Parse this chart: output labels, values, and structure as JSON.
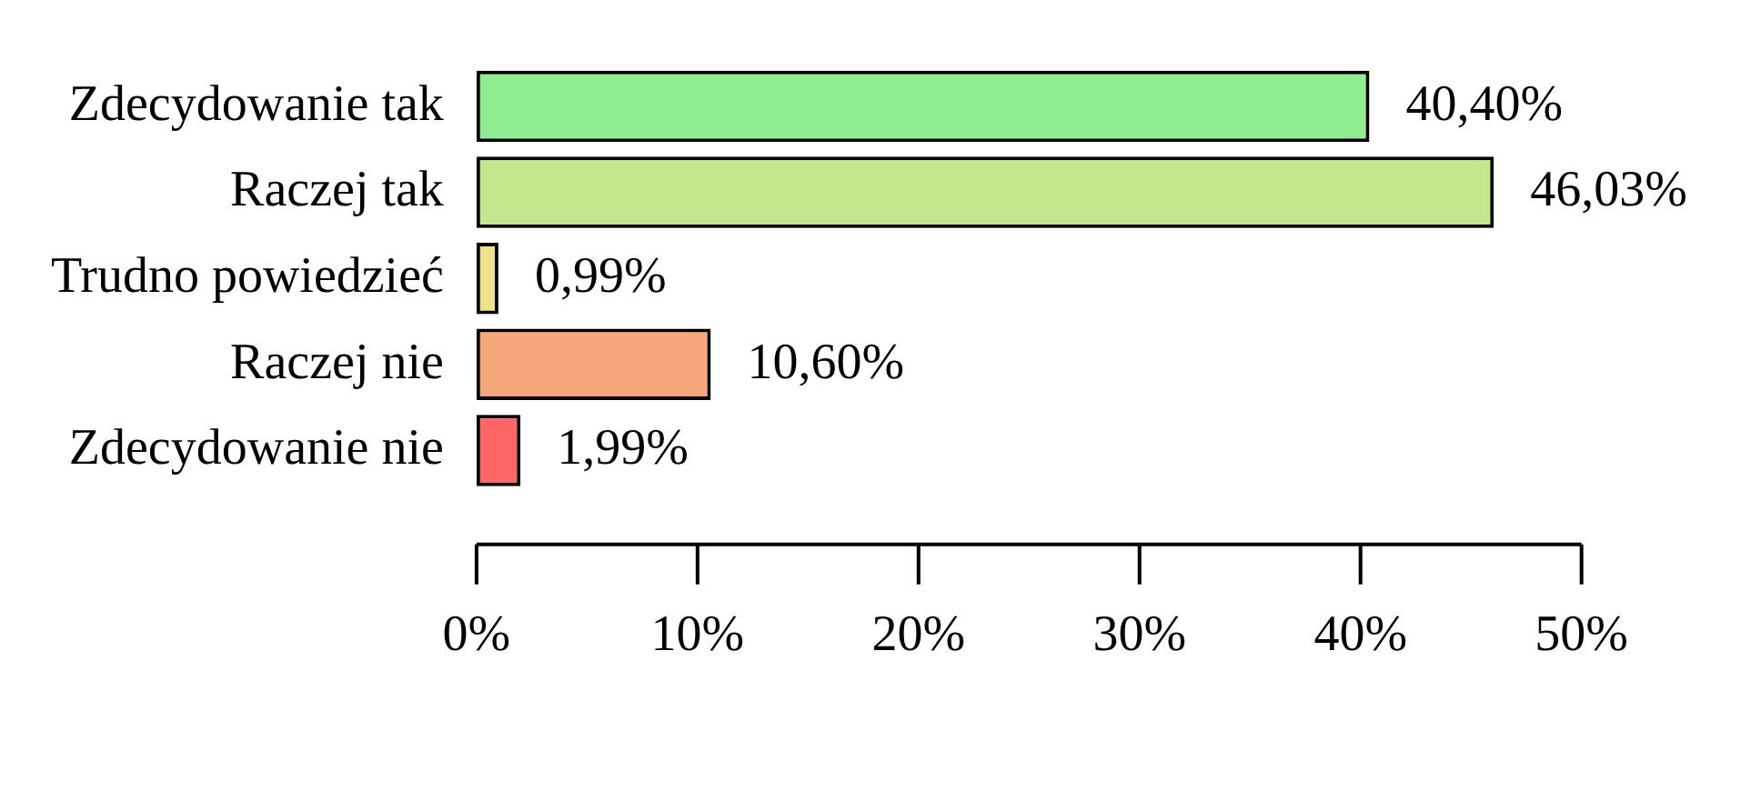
{
  "chart_data": {
    "type": "bar",
    "orientation": "horizontal",
    "categories": [
      "Zdecydowanie tak",
      "Raczej tak",
      "Trudno powiedzieć",
      "Raczej nie",
      "Zdecydowanie nie"
    ],
    "values": [
      40.4,
      46.03,
      0.99,
      10.6,
      1.99
    ],
    "colors": [
      "#90ee90",
      "#c2e78c",
      "#efe08a",
      "#f7a87a",
      "#ff6666"
    ],
    "value_labels": [
      "40,40%",
      "46,03%",
      "0,99%",
      "10,60%",
      "1,99%"
    ],
    "xlim": [
      0,
      50
    ],
    "xticks": [
      {
        "value": 0,
        "label": "0%"
      },
      {
        "value": 10,
        "label": "10%"
      },
      {
        "value": 20,
        "label": "20%"
      },
      {
        "value": 30,
        "label": "30%"
      },
      {
        "value": 40,
        "label": "40%"
      },
      {
        "value": 50,
        "label": "50%"
      }
    ],
    "grid": false,
    "legend": false
  }
}
